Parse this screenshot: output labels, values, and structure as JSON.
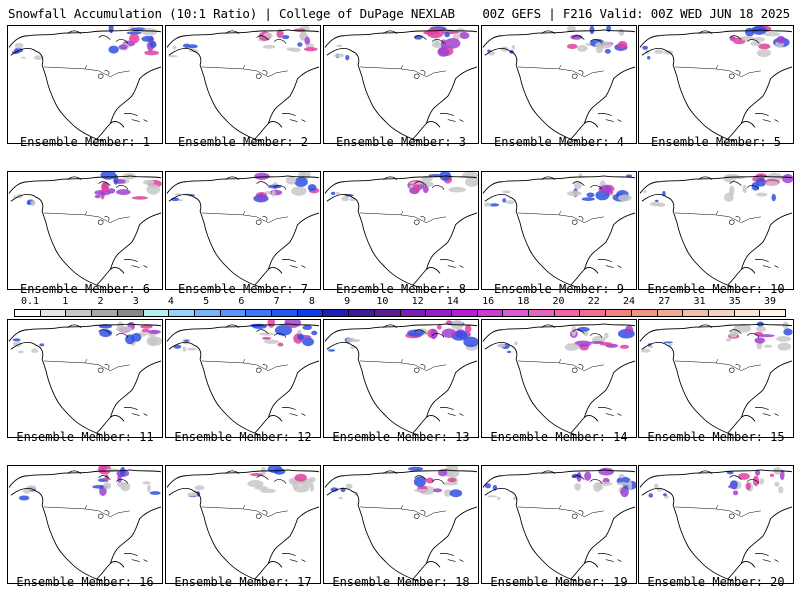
{
  "header": {
    "title_left": "Snowfall Accumulation (10:1 Ratio) | College of DuPage NEXLAB",
    "title_right": "00Z GEFS | F216 Valid: 00Z WED JUN 18 2025"
  },
  "colors": {
    "border": "#000000",
    "light_snow": "#c8c8c8",
    "blue_snow": "#3050e0",
    "purple_snow": "#a040d0",
    "magenta_snow": "#e040a0"
  },
  "colorbar": {
    "labels": [
      "0.1",
      "1",
      "2",
      "3",
      "4",
      "5",
      "6",
      "7",
      "8",
      "9",
      "10",
      "12",
      "14",
      "16",
      "18",
      "20",
      "22",
      "24",
      "27",
      "31",
      "35",
      "39"
    ],
    "colors": [
      "#ffffff",
      "#e6e6e6",
      "#c8c8c8",
      "#a8a8a8",
      "#888888",
      "#b4f0f0",
      "#96d2fa",
      "#78b4fa",
      "#5a96fa",
      "#3c78fa",
      "#1e5af0",
      "#0a3ce6",
      "#1e1eb4",
      "#3c1e96",
      "#5a1e96",
      "#781eb4",
      "#961ec8",
      "#b41ed2",
      "#c83cd2",
      "#dc5ad2",
      "#e664be",
      "#f064aa",
      "#f06e96",
      "#f08282",
      "#f09682",
      "#f0aa96",
      "#f0beaa",
      "#f5d2be",
      "#fae6d2",
      "#fff5e6"
    ]
  },
  "panels": [
    {
      "label": "Ensemble Member: 1"
    },
    {
      "label": "Ensemble Member: 2"
    },
    {
      "label": "Ensemble Member: 3"
    },
    {
      "label": "Ensemble Member: 4"
    },
    {
      "label": "Ensemble Member: 5"
    },
    {
      "label": "Ensemble Member: 6"
    },
    {
      "label": "Ensemble Member: 7"
    },
    {
      "label": "Ensemble Member: 8"
    },
    {
      "label": "Ensemble Member: 9"
    },
    {
      "label": "Ensemble Member: 10"
    },
    {
      "label": "Ensemble Member: 11"
    },
    {
      "label": "Ensemble Member: 12"
    },
    {
      "label": "Ensemble Member: 13"
    },
    {
      "label": "Ensemble Member: 14"
    },
    {
      "label": "Ensemble Member: 15"
    },
    {
      "label": "Ensemble Member: 16"
    },
    {
      "label": "Ensemble Member: 17"
    },
    {
      "label": "Ensemble Member: 18"
    },
    {
      "label": "Ensemble Member: 19"
    },
    {
      "label": "Ensemble Member: 20"
    }
  ]
}
